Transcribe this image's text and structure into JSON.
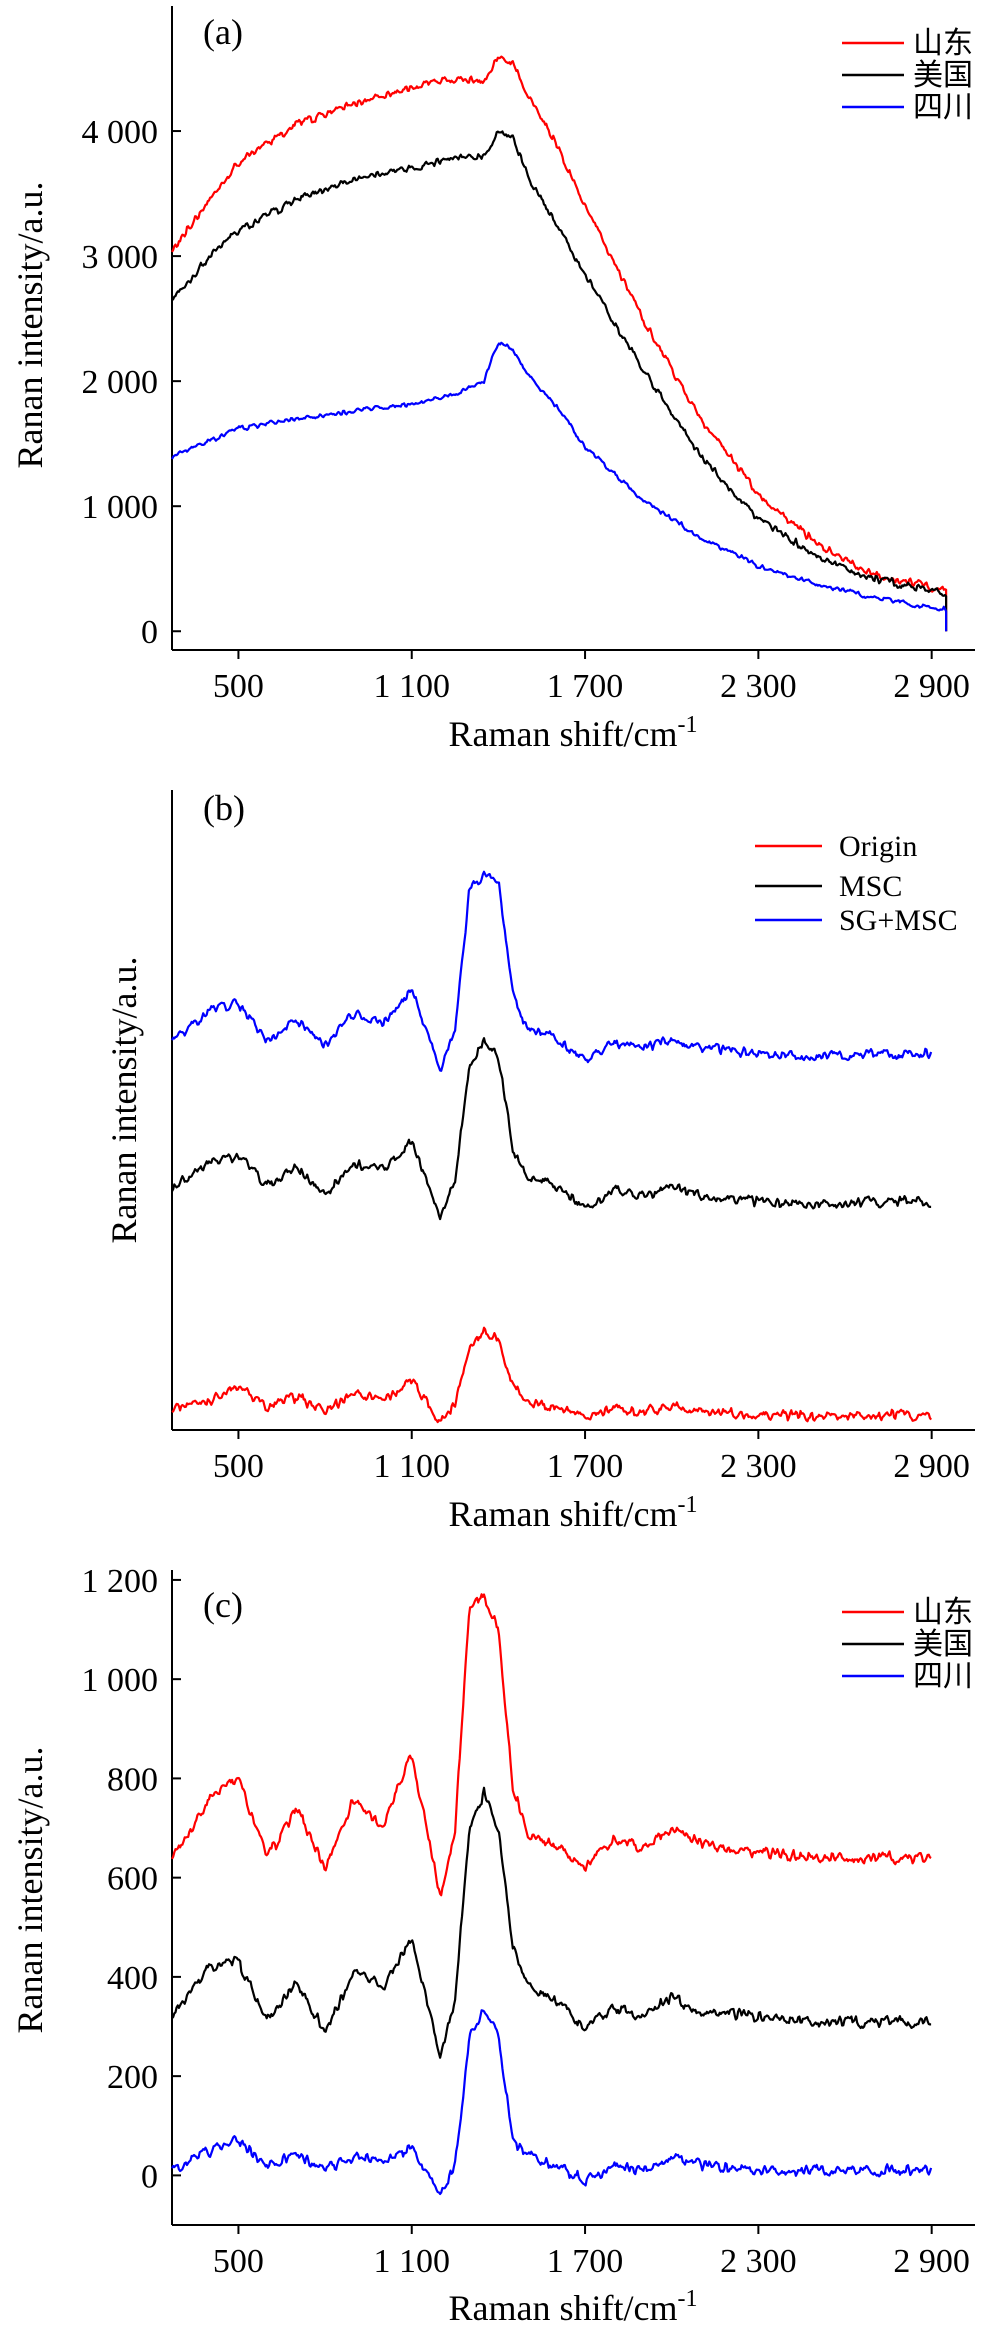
{
  "chart_data": [
    {
      "type": "line",
      "panel_label": "(a)",
      "xlabel": "Raman shift/cm",
      "xlabel_sup": "-1",
      "ylabel": "Ranan intensity/a.u.",
      "xlim": [
        270,
        3050
      ],
      "ylim": [
        -150,
        5000
      ],
      "xticks": [
        500,
        1100,
        1700,
        2300,
        2900
      ],
      "xtick_labels": [
        "500",
        "1 100",
        "1 700",
        "2 300",
        "2 900"
      ],
      "yticks": [
        0,
        1000,
        2000,
        3000,
        4000
      ],
      "ytick_labels": [
        "0",
        "1 000",
        "2 000",
        "3 000",
        "4 000"
      ],
      "legend_position": "top-right",
      "series": [
        {
          "name": "山东",
          "color": "#ff0000",
          "x": [
            270,
            400,
            500,
            700,
            900,
            1100,
            1250,
            1350,
            1400,
            1450,
            1500,
            1600,
            1700,
            1900,
            2100,
            2300,
            2500,
            2700,
            2950
          ],
          "y": [
            3050,
            3450,
            3750,
            4050,
            4220,
            4350,
            4420,
            4400,
            4600,
            4550,
            4300,
            3900,
            3400,
            2500,
            1700,
            1100,
            700,
            450,
            330
          ]
        },
        {
          "name": "美国",
          "color": "#000000",
          "x": [
            270,
            400,
            500,
            700,
            900,
            1100,
            1250,
            1350,
            1400,
            1450,
            1500,
            1600,
            1700,
            1900,
            2100,
            2300,
            2500,
            2700,
            2950
          ],
          "y": [
            2650,
            3000,
            3200,
            3450,
            3620,
            3700,
            3800,
            3800,
            4000,
            3950,
            3650,
            3250,
            2850,
            2100,
            1400,
            900,
            600,
            420,
            300
          ]
        },
        {
          "name": "四川",
          "color": "#0000ff",
          "x": [
            270,
            400,
            500,
            700,
            900,
            1100,
            1250,
            1350,
            1400,
            1450,
            1500,
            1600,
            1700,
            1900,
            2100,
            2300,
            2500,
            2700,
            2950
          ],
          "y": [
            1400,
            1520,
            1620,
            1700,
            1760,
            1820,
            1900,
            2000,
            2320,
            2250,
            2050,
            1800,
            1480,
            1050,
            750,
            520,
            380,
            270,
            170
          ]
        }
      ]
    },
    {
      "type": "line",
      "panel_label": "(b)",
      "xlabel": "Raman shift/cm",
      "xlabel_sup": "-1",
      "ylabel": "Ranan intensity/a.u.",
      "xlim": [
        270,
        3050
      ],
      "xticks": [
        500,
        1100,
        1700,
        2300,
        2900
      ],
      "xtick_labels": [
        "500",
        "1 100",
        "1 700",
        "2 300",
        "2 900"
      ],
      "yticks": [],
      "legend_position": "top-right",
      "series": [
        {
          "name": "Origin",
          "color": "#ff0000",
          "x": [
            270,
            400,
            500,
            600,
            700,
            800,
            900,
            1000,
            1100,
            1200,
            1250,
            1300,
            1350,
            1400,
            1450,
            1500,
            1600,
            1700,
            1800,
            1900,
            2000,
            2100,
            2300,
            2500,
            2700,
            2900
          ],
          "y": [
            0.15,
            0.2,
            0.28,
            0.15,
            0.22,
            0.12,
            0.25,
            0.2,
            0.32,
            0.05,
            0.18,
            0.55,
            0.65,
            0.6,
            0.3,
            0.18,
            0.15,
            0.08,
            0.14,
            0.12,
            0.16,
            0.12,
            0.1,
            0.09,
            0.1,
            0.1
          ]
        },
        {
          "name": "MSC",
          "color": "#000000",
          "x": [
            270,
            400,
            500,
            600,
            700,
            800,
            900,
            1000,
            1100,
            1200,
            1250,
            1300,
            1350,
            1400,
            1450,
            1500,
            1600,
            1700,
            1800,
            1900,
            2000,
            2100,
            2300,
            2500,
            2700,
            2900
          ],
          "y": [
            0.3,
            0.45,
            0.5,
            0.3,
            0.42,
            0.25,
            0.45,
            0.4,
            0.6,
            0.1,
            0.35,
            1.1,
            1.25,
            1.15,
            0.55,
            0.35,
            0.3,
            0.15,
            0.28,
            0.24,
            0.3,
            0.24,
            0.2,
            0.18,
            0.2,
            0.2
          ]
        },
        {
          "name": "SG+MSC",
          "color": "#0000ff",
          "x": [
            270,
            400,
            500,
            600,
            700,
            800,
            900,
            1000,
            1100,
            1200,
            1250,
            1300,
            1350,
            1400,
            1450,
            1500,
            1600,
            1700,
            1800,
            1900,
            2000,
            2100,
            2300,
            2500,
            2700,
            2900
          ],
          "y": [
            0.3,
            0.5,
            0.55,
            0.3,
            0.45,
            0.28,
            0.48,
            0.42,
            0.65,
            0.12,
            0.38,
            1.3,
            1.4,
            1.35,
            0.6,
            0.38,
            0.32,
            0.18,
            0.3,
            0.26,
            0.32,
            0.26,
            0.22,
            0.2,
            0.22,
            0.22
          ]
        }
      ]
    },
    {
      "type": "line",
      "panel_label": "(c)",
      "xlabel": "Raman shift/cm",
      "xlabel_sup": "-1",
      "ylabel": "Ranan intensity/a.u.",
      "xlim": [
        270,
        3050
      ],
      "ylim": [
        -100,
        1220
      ],
      "xticks": [
        500,
        1100,
        1700,
        2300,
        2900
      ],
      "xtick_labels": [
        "500",
        "1 100",
        "1 700",
        "2 300",
        "2 900"
      ],
      "yticks": [
        0,
        200,
        400,
        600,
        800,
        1000,
        1200
      ],
      "ytick_labels": [
        "0",
        "200",
        "400",
        "600",
        "800",
        "1 000",
        "1 200"
      ],
      "legend_position": "top-right",
      "series": [
        {
          "name": "山东",
          "color": "#ff0000",
          "x": [
            270,
            400,
            500,
            600,
            700,
            800,
            900,
            1000,
            1100,
            1200,
            1250,
            1300,
            1350,
            1400,
            1450,
            1500,
            1600,
            1700,
            1800,
            1900,
            2000,
            2100,
            2300,
            2500,
            2700,
            2900
          ],
          "y": [
            640,
            760,
            800,
            640,
            740,
            620,
            760,
            700,
            850,
            560,
            700,
            1150,
            1170,
            1100,
            780,
            690,
            660,
            620,
            680,
            660,
            700,
            670,
            650,
            640,
            640,
            640
          ]
        },
        {
          "name": "美国",
          "color": "#000000",
          "x": [
            270,
            400,
            500,
            600,
            700,
            800,
            900,
            1000,
            1100,
            1200,
            1250,
            1300,
            1350,
            1400,
            1450,
            1500,
            1600,
            1700,
            1800,
            1900,
            2000,
            2100,
            2300,
            2500,
            2700,
            2900
          ],
          "y": [
            320,
            420,
            430,
            310,
            390,
            290,
            410,
            380,
            480,
            240,
            360,
            700,
            770,
            700,
            460,
            380,
            350,
            300,
            340,
            320,
            360,
            330,
            320,
            310,
            310,
            310
          ]
        },
        {
          "name": "四川",
          "color": "#0000ff",
          "x": [
            270,
            400,
            500,
            600,
            700,
            800,
            900,
            1000,
            1100,
            1200,
            1250,
            1300,
            1350,
            1400,
            1450,
            1500,
            1600,
            1700,
            1800,
            1900,
            2000,
            2100,
            2300,
            2500,
            2700,
            2900
          ],
          "y": [
            10,
            50,
            70,
            20,
            45,
            10,
            40,
            30,
            60,
            -40,
            20,
            280,
            330,
            280,
            70,
            40,
            20,
            -10,
            20,
            10,
            40,
            20,
            10,
            10,
            10,
            10
          ]
        }
      ]
    }
  ]
}
